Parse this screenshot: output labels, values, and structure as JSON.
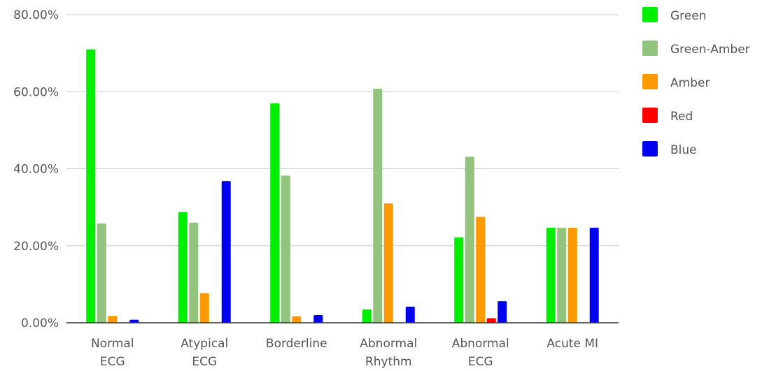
{
  "chart_data": {
    "type": "bar",
    "title": "",
    "xlabel": "",
    "ylabel": "",
    "ylim": [
      0,
      80
    ],
    "y_ticks": [
      "0.00%",
      "20.00%",
      "40.00%",
      "60.00%",
      "80.00%"
    ],
    "y_tick_values": [
      0,
      20,
      40,
      60,
      80
    ],
    "grid": true,
    "legend_position": "right",
    "categories": [
      [
        "Normal",
        "ECG"
      ],
      [
        "Atypical",
        "ECG"
      ],
      [
        "Borderline"
      ],
      [
        "Abnormal",
        "Rhythm"
      ],
      [
        "Abnormal",
        "ECG"
      ],
      [
        "Acute MI"
      ]
    ],
    "series": [
      {
        "name": "Green",
        "color": "#00ee00",
        "values": [
          71.0,
          28.8,
          57.0,
          3.5,
          22.2,
          24.7
        ]
      },
      {
        "name": "Green-Amber",
        "color": "#93c47d",
        "values": [
          25.8,
          26.0,
          38.2,
          60.8,
          43.1,
          24.7
        ]
      },
      {
        "name": "Amber",
        "color": "#ff9900",
        "values": [
          1.8,
          7.7,
          1.7,
          31.0,
          27.5,
          24.7
        ]
      },
      {
        "name": "Red",
        "color": "#ff0000",
        "values": [
          0,
          0,
          0,
          0,
          1.2,
          0
        ]
      },
      {
        "name": "Blue",
        "color": "#0000ee",
        "values": [
          0.8,
          36.8,
          2.0,
          4.2,
          5.6,
          24.7
        ]
      }
    ]
  }
}
